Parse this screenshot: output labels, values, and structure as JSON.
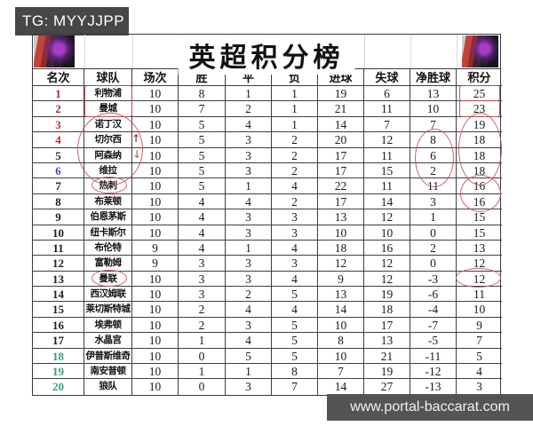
{
  "badges": {
    "tg": "TG: MYYJJPP",
    "watermark": "www.portal-baccarat.com"
  },
  "title": "英超积分榜",
  "table": {
    "headers": [
      "名次",
      "球队",
      "场次",
      "胜",
      "平",
      "负",
      "进球",
      "失球",
      "净胜球",
      "积分"
    ],
    "rows": [
      {
        "rank": "1",
        "team": "利物浦",
        "p": "10",
        "w": "8",
        "d": "1",
        "l": "1",
        "gf": "19",
        "ga": "6",
        "gd": "13",
        "pts": "25",
        "rank_color": "#b22a2a"
      },
      {
        "rank": "2",
        "team": "曼城",
        "p": "10",
        "w": "7",
        "d": "2",
        "l": "1",
        "gf": "21",
        "ga": "11",
        "gd": "10",
        "pts": "23",
        "rank_color": "#9a3333"
      },
      {
        "rank": "3",
        "team": "诺丁汉",
        "p": "10",
        "w": "5",
        "d": "4",
        "l": "1",
        "gf": "14",
        "ga": "7",
        "gd": "7",
        "pts": "19",
        "rank_color": "#c03a3a"
      },
      {
        "rank": "4",
        "team": "切尔西",
        "p": "10",
        "w": "5",
        "d": "3",
        "l": "2",
        "gf": "20",
        "ga": "12",
        "gd": "8",
        "pts": "18",
        "rank_color": "#cc2424"
      },
      {
        "rank": "5",
        "team": "阿森纳",
        "p": "10",
        "w": "5",
        "d": "3",
        "l": "2",
        "gf": "17",
        "ga": "11",
        "gd": "6",
        "pts": "18",
        "rank_color": "#2a2a2a"
      },
      {
        "rank": "6",
        "team": "维拉",
        "p": "10",
        "w": "5",
        "d": "3",
        "l": "2",
        "gf": "17",
        "ga": "15",
        "gd": "2",
        "pts": "18",
        "rank_color": "#5a3fae"
      },
      {
        "rank": "7",
        "team": "热刺",
        "p": "10",
        "w": "5",
        "d": "1",
        "l": "4",
        "gf": "22",
        "ga": "11",
        "gd": "11",
        "pts": "16",
        "rank_color": "#1f1f1f"
      },
      {
        "rank": "8",
        "team": "布莱顿",
        "p": "10",
        "w": "4",
        "d": "4",
        "l": "2",
        "gf": "17",
        "ga": "14",
        "gd": "3",
        "pts": "16",
        "rank_color": "#1f1f1f"
      },
      {
        "rank": "9",
        "team": "伯恩茅斯",
        "p": "10",
        "w": "4",
        "d": "3",
        "l": "3",
        "gf": "13",
        "ga": "12",
        "gd": "1",
        "pts": "15",
        "rank_color": "#1f1f1f"
      },
      {
        "rank": "10",
        "team": "纽卡斯尔",
        "p": "10",
        "w": "4",
        "d": "3",
        "l": "3",
        "gf": "10",
        "ga": "10",
        "gd": "0",
        "pts": "15",
        "rank_color": "#1f1f1f"
      },
      {
        "rank": "11",
        "team": "布伦特",
        "p": "9",
        "w": "4",
        "d": "1",
        "l": "4",
        "gf": "18",
        "ga": "16",
        "gd": "2",
        "pts": "13",
        "rank_color": "#1f1f1f"
      },
      {
        "rank": "12",
        "team": "富勒姆",
        "p": "9",
        "w": "3",
        "d": "3",
        "l": "3",
        "gf": "12",
        "ga": "12",
        "gd": "0",
        "pts": "12",
        "rank_color": "#1f1f1f"
      },
      {
        "rank": "13",
        "team": "曼联",
        "p": "10",
        "w": "3",
        "d": "3",
        "l": "4",
        "gf": "9",
        "ga": "12",
        "gd": "-3",
        "pts": "12",
        "rank_color": "#1f1f1f"
      },
      {
        "rank": "14",
        "team": "西汉姆联",
        "p": "10",
        "w": "3",
        "d": "2",
        "l": "5",
        "gf": "13",
        "ga": "19",
        "gd": "-6",
        "pts": "11",
        "rank_color": "#1f1f1f"
      },
      {
        "rank": "15",
        "team": "莱切斯特城",
        "p": "10",
        "w": "2",
        "d": "4",
        "l": "4",
        "gf": "14",
        "ga": "18",
        "gd": "-4",
        "pts": "10",
        "rank_color": "#1f1f1f"
      },
      {
        "rank": "16",
        "team": "埃弗顿",
        "p": "10",
        "w": "2",
        "d": "3",
        "l": "5",
        "gf": "10",
        "ga": "17",
        "gd": "-7",
        "pts": "9",
        "rank_color": "#1f1f1f"
      },
      {
        "rank": "17",
        "team": "水晶宫",
        "p": "10",
        "w": "1",
        "d": "4",
        "l": "5",
        "gf": "8",
        "ga": "13",
        "gd": "-5",
        "pts": "7",
        "rank_color": "#1f1f1f"
      },
      {
        "rank": "18",
        "team": "伊普斯维奇",
        "p": "10",
        "w": "0",
        "d": "5",
        "l": "5",
        "gf": "10",
        "ga": "21",
        "gd": "-11",
        "pts": "5",
        "rank_color": "#35a176"
      },
      {
        "rank": "19",
        "team": "南安普顿",
        "p": "10",
        "w": "1",
        "d": "1",
        "l": "8",
        "gf": "7",
        "ga": "19",
        "gd": "-12",
        "pts": "4",
        "rank_color": "#35a176"
      },
      {
        "rank": "20",
        "team": "狼队",
        "p": "10",
        "w": "0",
        "d": "3",
        "l": "7",
        "gf": "14",
        "ga": "27",
        "gd": "-13",
        "pts": "3",
        "rank_color": "#35a176"
      }
    ]
  },
  "annotations": {
    "up_arrow": "↑",
    "down_arrow": "↓",
    "color": "#c5545c"
  }
}
